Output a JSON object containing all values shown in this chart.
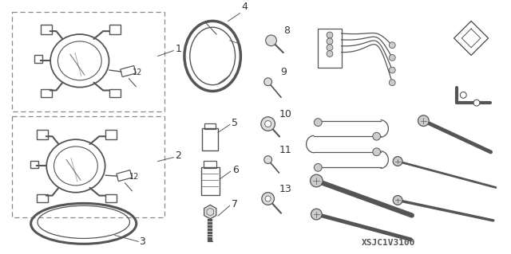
{
  "bg_color": "#ffffff",
  "lc": "#555555",
  "dc": "#888888",
  "tc": "#333333",
  "fig_width": 6.4,
  "fig_height": 3.19,
  "part_number": "XSJC1V3100"
}
